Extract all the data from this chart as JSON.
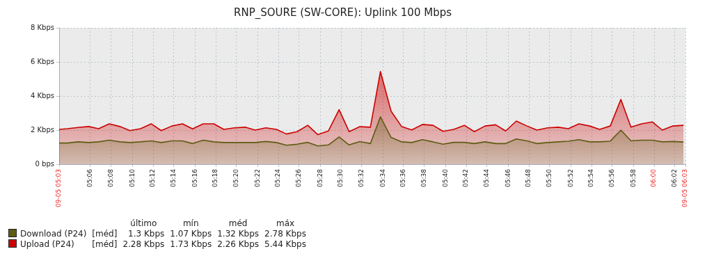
{
  "chart_data": {
    "type": "area",
    "title": "RNP_SOURE (SW-CORE): Uplink 100 Mbps",
    "x": [
      5.05,
      5.063,
      5.08,
      5.097,
      5.113,
      5.13,
      5.147,
      5.163,
      5.18,
      5.197,
      5.213,
      5.23,
      5.247,
      5.263,
      5.28,
      5.297,
      5.313,
      5.33,
      5.347,
      5.363,
      5.38,
      5.397,
      5.413,
      5.43,
      5.447,
      5.463,
      5.48,
      5.497,
      5.513,
      5.53,
      5.547,
      5.563,
      5.58,
      5.597,
      5.613,
      5.63,
      5.647,
      5.663,
      5.68,
      5.697,
      5.713,
      5.73,
      5.747,
      5.763,
      5.78,
      5.797,
      5.813,
      5.83,
      5.847,
      5.863,
      5.88,
      5.897,
      5.913,
      5.93,
      5.947,
      5.963,
      5.98,
      5.997,
      6.013,
      6.03,
      6.047
    ],
    "series": [
      {
        "name": "Download (P24)",
        "color": "#5c5c12",
        "values": [
          1.24,
          1.24,
          1.31,
          1.27,
          1.31,
          1.41,
          1.31,
          1.27,
          1.31,
          1.37,
          1.27,
          1.37,
          1.37,
          1.21,
          1.41,
          1.31,
          1.27,
          1.27,
          1.27,
          1.27,
          1.33,
          1.27,
          1.11,
          1.17,
          1.28,
          1.07,
          1.13,
          1.6,
          1.13,
          1.33,
          1.21,
          2.78,
          1.57,
          1.31,
          1.27,
          1.44,
          1.31,
          1.17,
          1.28,
          1.28,
          1.21,
          1.31,
          1.21,
          1.21,
          1.48,
          1.37,
          1.21,
          1.27,
          1.31,
          1.35,
          1.44,
          1.31,
          1.31,
          1.35,
          2.0,
          1.37,
          1.41,
          1.41,
          1.31,
          1.33,
          1.3
        ]
      },
      {
        "name": "Upload (P24)",
        "color": "#cc0000",
        "values": [
          2.04,
          2.08,
          2.15,
          2.21,
          2.08,
          2.37,
          2.21,
          1.97,
          2.08,
          2.37,
          1.97,
          2.24,
          2.37,
          2.07,
          2.37,
          2.37,
          2.04,
          2.13,
          2.17,
          2.0,
          2.13,
          2.04,
          1.77,
          1.91,
          2.28,
          1.73,
          1.95,
          3.2,
          1.91,
          2.2,
          2.17,
          5.44,
          3.11,
          2.2,
          2.01,
          2.33,
          2.28,
          1.93,
          2.04,
          2.28,
          1.91,
          2.24,
          2.31,
          1.95,
          2.53,
          2.24,
          2.0,
          2.13,
          2.17,
          2.08,
          2.37,
          2.24,
          2.04,
          2.24,
          3.8,
          2.17,
          2.37,
          2.48,
          2.0,
          2.24,
          2.28
        ]
      }
    ],
    "xlim": [
      5.05,
      6.05
    ],
    "xticks": [
      {
        "value": 5.05,
        "label": "09-05 05:03"
      },
      {
        "value": 5.1,
        "label": "05:06"
      },
      {
        "value": 5.133,
        "label": "05:08"
      },
      {
        "value": 5.167,
        "label": "05:10"
      },
      {
        "value": 5.2,
        "label": "05:12"
      },
      {
        "value": 5.233,
        "label": "05:14"
      },
      {
        "value": 5.267,
        "label": "05:16"
      },
      {
        "value": 5.3,
        "label": "05:18"
      },
      {
        "value": 5.333,
        "label": "05:20"
      },
      {
        "value": 5.367,
        "label": "05:22"
      },
      {
        "value": 5.4,
        "label": "05:24"
      },
      {
        "value": 5.433,
        "label": "05:26"
      },
      {
        "value": 5.467,
        "label": "05:28"
      },
      {
        "value": 5.5,
        "label": "05:30"
      },
      {
        "value": 5.533,
        "label": "05:32"
      },
      {
        "value": 5.567,
        "label": "05:34"
      },
      {
        "value": 5.6,
        "label": "05:36"
      },
      {
        "value": 5.633,
        "label": "05:38"
      },
      {
        "value": 5.667,
        "label": "05:40"
      },
      {
        "value": 5.7,
        "label": "05:42"
      },
      {
        "value": 5.733,
        "label": "05:44"
      },
      {
        "value": 5.767,
        "label": "05:46"
      },
      {
        "value": 5.8,
        "label": "05:48"
      },
      {
        "value": 5.833,
        "label": "05:50"
      },
      {
        "value": 5.867,
        "label": "05:52"
      },
      {
        "value": 5.9,
        "label": "05:54"
      },
      {
        "value": 5.933,
        "label": "05:56"
      },
      {
        "value": 5.967,
        "label": "05:58"
      },
      {
        "value": 6,
        "label": "06:00"
      },
      {
        "value": 6.033,
        "label": "06:02"
      },
      {
        "value": 6.05,
        "label": "09-05 06:03"
      }
    ],
    "ylim": [
      0,
      8
    ],
    "yticks": [
      {
        "value": 0,
        "label": "0 bps"
      },
      {
        "value": 2,
        "label": "2 Kbps"
      },
      {
        "value": 4,
        "label": "4 Kbps"
      },
      {
        "value": 6,
        "label": "6 Kbps"
      },
      {
        "value": 8,
        "label": "8 Kbps"
      }
    ],
    "grid": true,
    "legend": "bottom left",
    "marker": "none",
    "annotations": [
      "último",
      "mín",
      "méd",
      "máx",
      "[méd]",
      "1.3 Kbps",
      "1.07 Kbps",
      "1.32 Kbps",
      "2.78 Kbps",
      "[méd]",
      "2.28 Kbps",
      "1.73 Kbps",
      "2.26 Kbps",
      "5.44 Kbps"
    ]
  }
}
